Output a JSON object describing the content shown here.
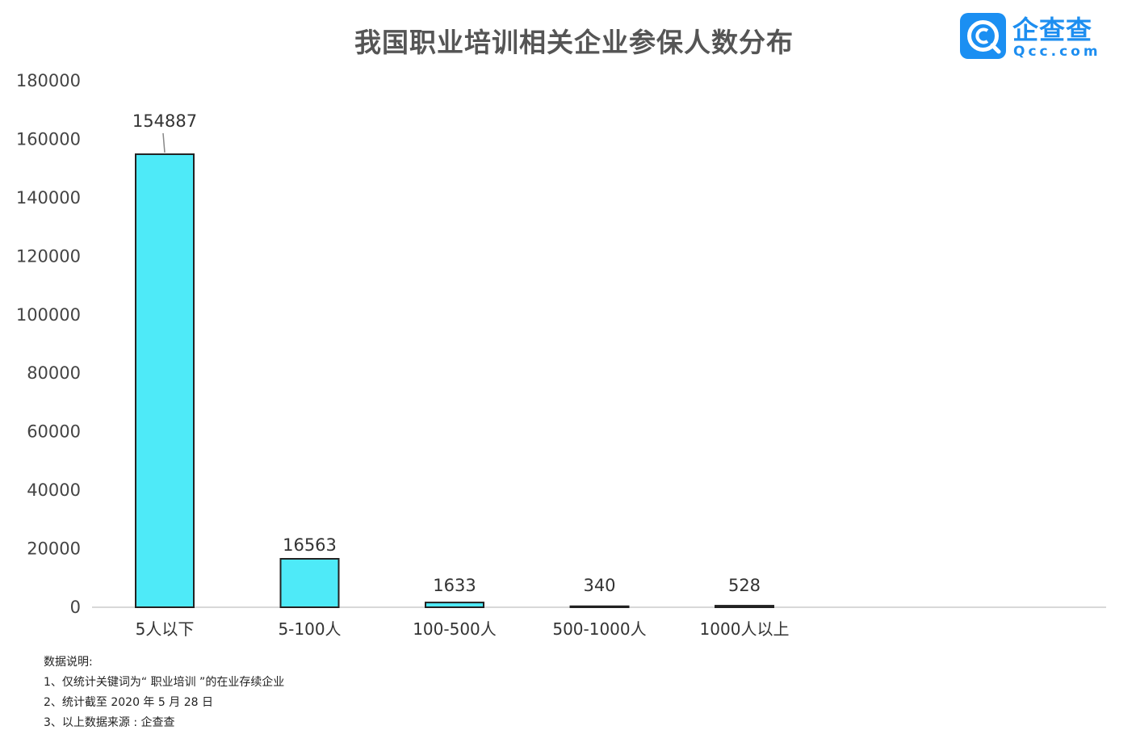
{
  "title": "我国职业培训相关企业参保人数分布",
  "logo": {
    "name": "企查查",
    "domain": "Qcc.com"
  },
  "chart_data": {
    "type": "bar",
    "title": "我国职业培训相关企业参保人数分布",
    "categories": [
      "5人以下",
      "5-100人",
      "100-500人",
      "500-1000人",
      "1000人以上"
    ],
    "values": [
      154887,
      16563,
      1633,
      340,
      528
    ],
    "data_labels": [
      "154887",
      "16563",
      "1633",
      "340",
      "528"
    ],
    "ylim": [
      0,
      180000
    ],
    "yticks": [
      0,
      20000,
      40000,
      60000,
      80000,
      100000,
      120000,
      140000,
      160000,
      180000
    ],
    "ytick_labels": [
      "0",
      "20000",
      "40000",
      "60000",
      "80000",
      "100000",
      "120000",
      "140000",
      "160000",
      "180000"
    ],
    "xlabel": "",
    "ylabel": "",
    "grid": false,
    "bar_color": "#4eeaf8",
    "bar_edge_color": "#222222"
  },
  "notes": {
    "heading": "数据说明:",
    "items": [
      "1、仅统计关键词为“ 职业培训 ”的在业存续企业",
      "2、统计截至 2020 年 5 月 28 日",
      "3、以上数据来源 : 企查查"
    ]
  }
}
